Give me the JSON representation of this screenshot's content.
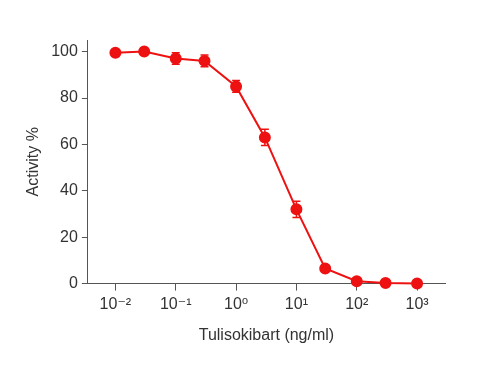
{
  "chart_data": {
    "type": "line",
    "x_label": "Tulisokibart (ng/ml)",
    "y_label": "Activity %",
    "x": [
      0.01,
      0.03,
      0.1,
      0.3,
      1,
      3,
      10,
      30,
      100,
      300,
      1000
    ],
    "values": [
      99.5,
      100,
      97,
      96,
      85,
      63,
      32,
      6.5,
      1,
      0.3,
      0
    ],
    "errors": [
      1,
      1,
      2.5,
      2.5,
      2.5,
      3.5,
      3.5,
      1,
      0.5,
      0.5,
      0.5
    ],
    "color": "#ee1111",
    "marker": "circle",
    "line_style": "solid",
    "log": "x",
    "grid": false,
    "xlim": [
      0.0035,
      2900
    ],
    "xticks": [
      {
        "value": 0.01,
        "label": "10⁻²"
      },
      {
        "value": 0.1,
        "label": "10⁻¹"
      },
      {
        "value": 1,
        "label": "10⁰"
      },
      {
        "value": 10,
        "label": "10¹"
      },
      {
        "value": 100,
        "label": "10²"
      },
      {
        "value": 1000,
        "label": "10³"
      }
    ],
    "ylim": [
      0,
      105
    ],
    "yticks": [
      0,
      20,
      40,
      60,
      80,
      100
    ]
  }
}
